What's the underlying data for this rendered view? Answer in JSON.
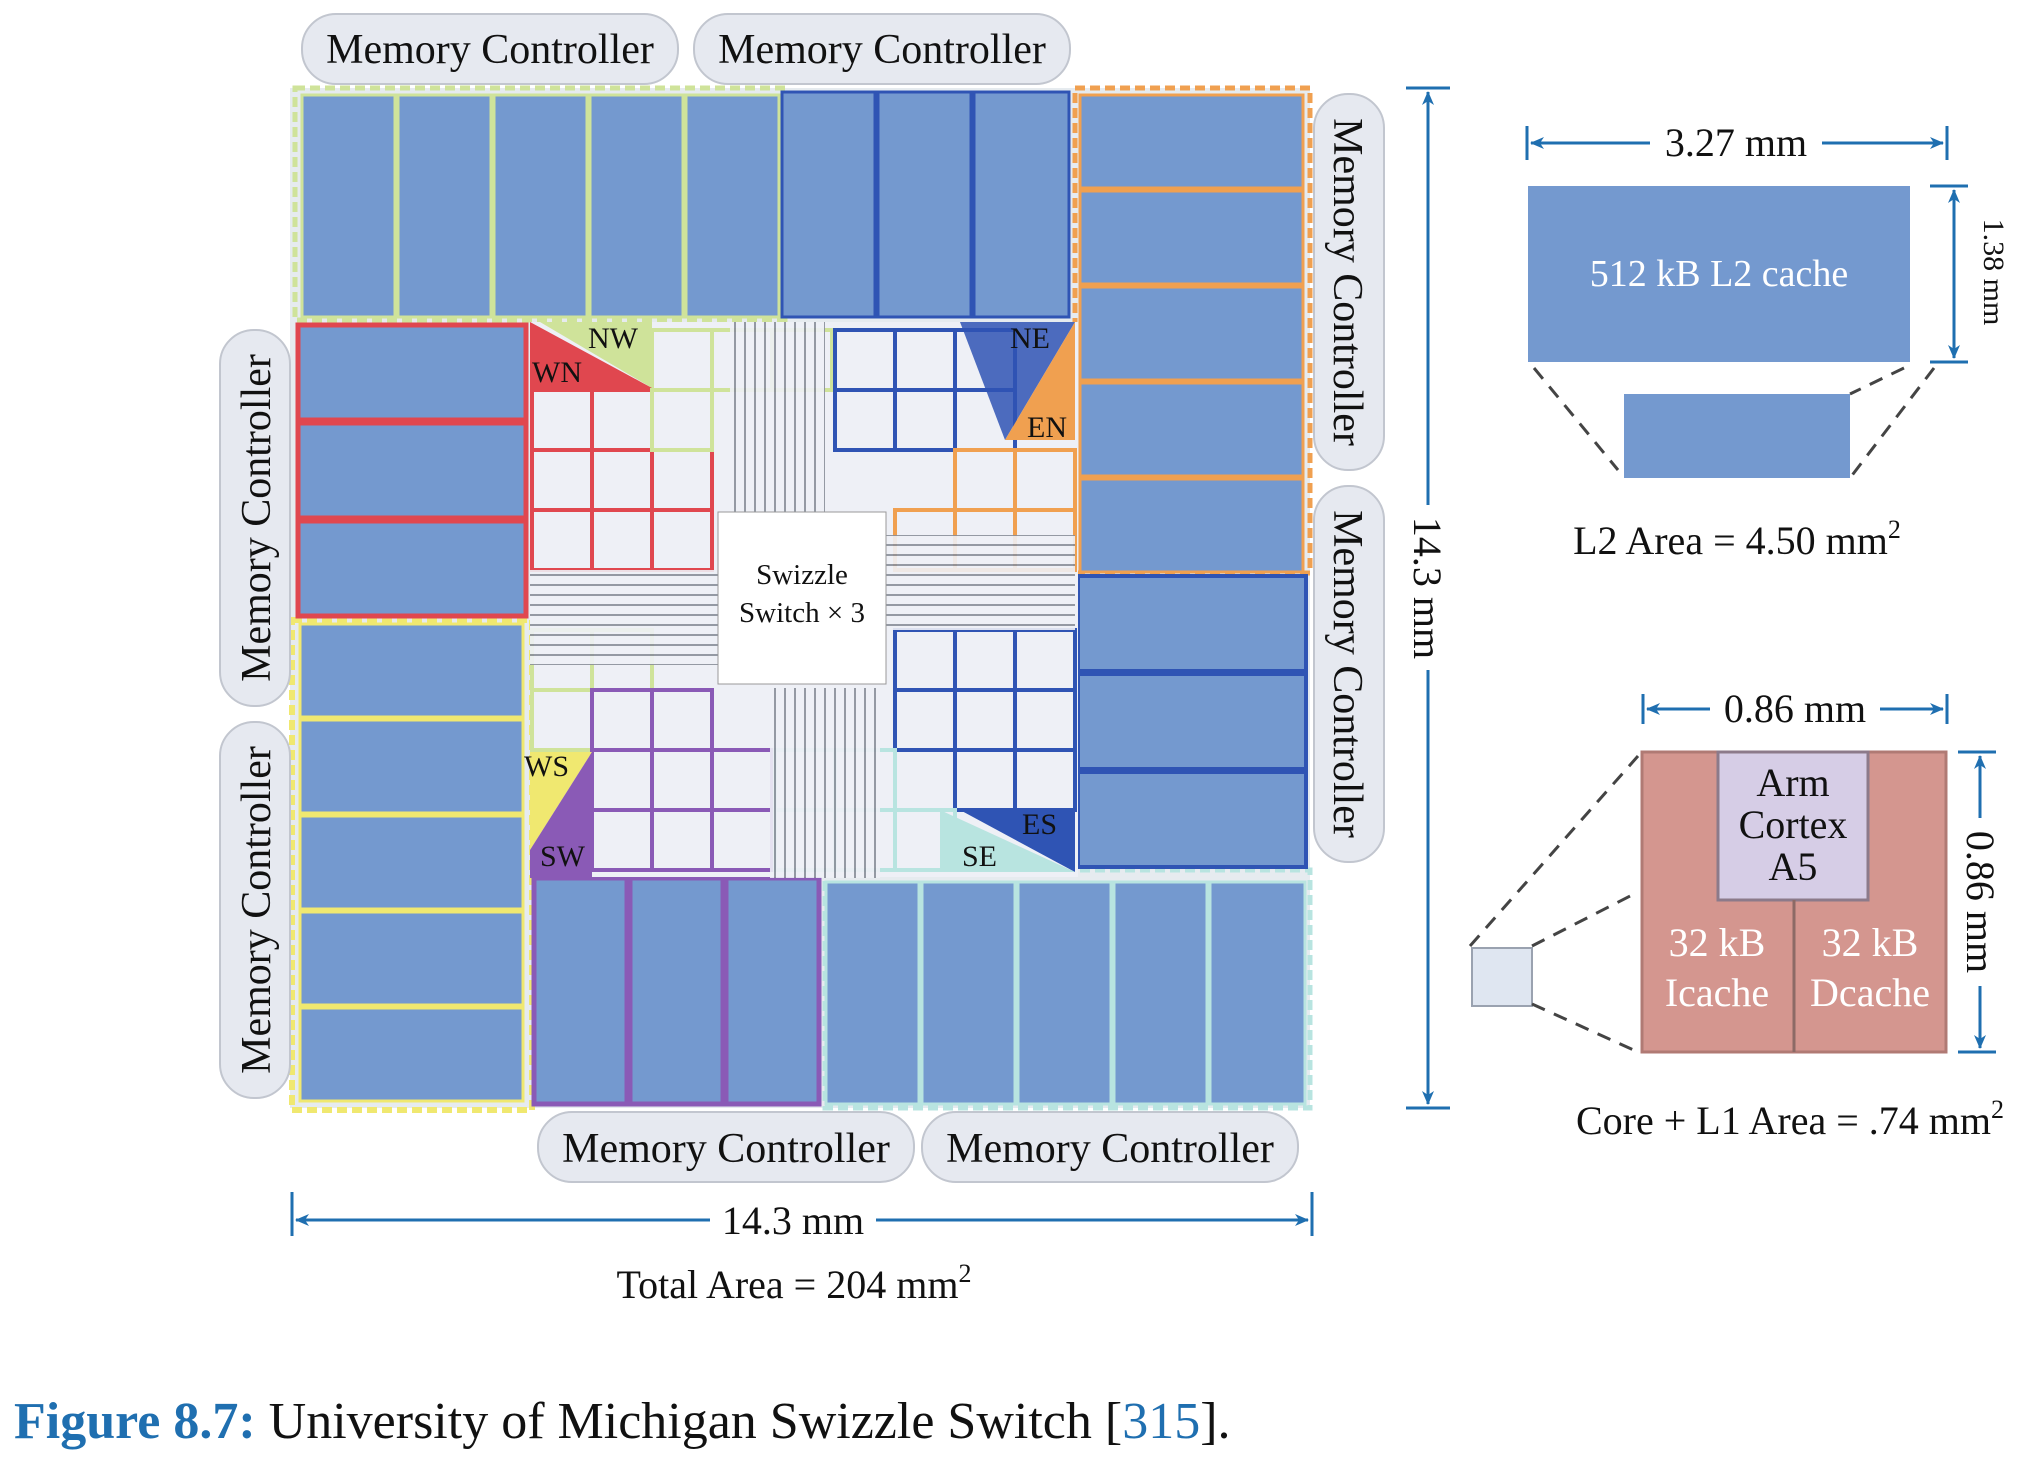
{
  "memory_controller": "Memory Controller",
  "core_labels": {
    "nw": "NW",
    "wn": "WN",
    "ne": "NE",
    "en": "EN",
    "ws": "WS",
    "sw": "SW",
    "es": "ES",
    "se": "SE"
  },
  "swizzle": {
    "line1": "Swizzle",
    "line2": "Switch × 3"
  },
  "die": {
    "width": "14.3 mm",
    "height": "14.3 mm",
    "area": "Total Area = 204 mm",
    "area_exp": "2"
  },
  "l2": {
    "width": "3.27 mm",
    "height": "1.38 mm",
    "label": "512 kB L2 cache",
    "area": "L2 Area = 4.50 mm",
    "area_exp": "2"
  },
  "core": {
    "width": "0.86 mm",
    "height": "0.86 mm",
    "cpu": [
      "Arm",
      "Cortex",
      "A5"
    ],
    "icache": [
      "32 kB",
      "Icache"
    ],
    "dcache": [
      "32 kB",
      "Dcache"
    ],
    "area": "Core + L1 Area = .74 mm",
    "area_exp": "2"
  },
  "caption": {
    "label": "Figure 8.7:",
    "text": " University of Michigan Swizzle Switch [",
    "ref": "315",
    "end": "]."
  },
  "colors": {
    "block": "#7499cf",
    "red": "#e0474f",
    "orange": "#f0a050",
    "blue": "#2f54b4",
    "purple": "#8a5ab6",
    "yellow": "#f0e870",
    "green": "#cfe39a",
    "teal": "#b8e4e0",
    "core_pink": "#d4968f",
    "arrow": "#1f6fb0"
  }
}
